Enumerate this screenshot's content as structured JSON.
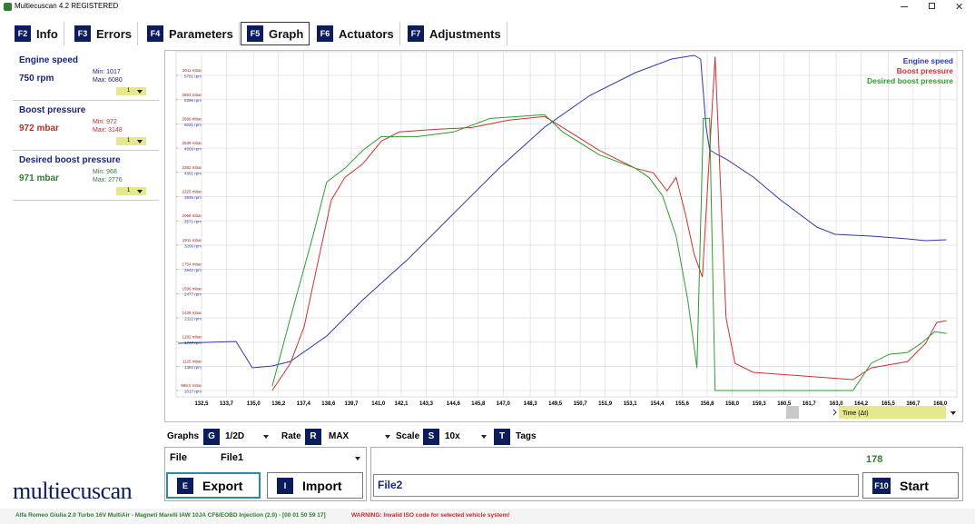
{
  "window": {
    "title": "Multiecuscan 4.2 REGISTERED"
  },
  "tabs": [
    {
      "key": "F2",
      "label": "Info"
    },
    {
      "key": "F3",
      "label": "Errors"
    },
    {
      "key": "F4",
      "label": "Parameters"
    },
    {
      "key": "F5",
      "label": "Graph"
    },
    {
      "key": "F6",
      "label": "Actuators"
    },
    {
      "key": "F7",
      "label": "Adjustments"
    }
  ],
  "panels": [
    {
      "name": "Engine speed",
      "value": "750 rpm",
      "min": "Min: 1017",
      "max": "Max: 6080",
      "scale": "1",
      "color": "#1a237e"
    },
    {
      "name": "Boost pressure",
      "value": "972 mbar",
      "min": "Min: 972",
      "max": "Max: 3148",
      "scale": "1",
      "color": "#c62828"
    },
    {
      "name": "Desired boost pressure",
      "value": "971 mbar",
      "min": "Min: 968",
      "max": "Max: 2776",
      "scale": "1",
      "color": "#2e7d32"
    }
  ],
  "chart_data": {
    "type": "line",
    "grid": true,
    "legend": "top-right",
    "x_label": "Time (Δt)",
    "xlim": [
      131.28,
      168.8
    ],
    "xticks": [
      {
        "value": 132.5,
        "label": "132,5"
      },
      {
        "value": 133.7,
        "label": "133,7"
      },
      {
        "value": 135.0,
        "label": "135,0"
      },
      {
        "value": 136.2,
        "label": "136,2"
      },
      {
        "value": 137.4,
        "label": "137,4"
      },
      {
        "value": 138.6,
        "label": "138,6"
      },
      {
        "value": 139.7,
        "label": "139,7"
      },
      {
        "value": 141.0,
        "label": "141,0"
      },
      {
        "value": 142.1,
        "label": "142,1"
      },
      {
        "value": 143.3,
        "label": "143,3"
      },
      {
        "value": 144.6,
        "label": "144,6"
      },
      {
        "value": 145.8,
        "label": "145,8"
      },
      {
        "value": 147.0,
        "label": "147,0"
      },
      {
        "value": 148.3,
        "label": "148,3"
      },
      {
        "value": 149.5,
        "label": "149,5"
      },
      {
        "value": 150.7,
        "label": "150,7"
      },
      {
        "value": 151.9,
        "label": "151,9"
      },
      {
        "value": 153.1,
        "label": "153,1"
      },
      {
        "value": 154.4,
        "label": "154,4"
      },
      {
        "value": 155.6,
        "label": "155,6"
      },
      {
        "value": 156.8,
        "label": "156,8"
      },
      {
        "value": 158.0,
        "label": "158,0"
      },
      {
        "value": 159.3,
        "label": "159,3"
      },
      {
        "value": 160.5,
        "label": "160,5"
      },
      {
        "value": 161.7,
        "label": "161,7"
      },
      {
        "value": 163.0,
        "label": "163,0"
      },
      {
        "value": 164.2,
        "label": "164,2"
      },
      {
        "value": 165.5,
        "label": "165,5"
      },
      {
        "value": 166.7,
        "label": "166,7"
      },
      {
        "value": 168.0,
        "label": "168,0"
      }
    ],
    "ylim": [
      927,
      3164
    ],
    "yticks": [
      {
        "value": 968,
        "label": "968,0 mbar"
      },
      {
        "value": 1125,
        "label": "1125 mbar"
      },
      {
        "value": 1282,
        "label": "1282 mbar"
      },
      {
        "value": 1439,
        "label": "1439 mbar"
      },
      {
        "value": 1596,
        "label": "1596 mbar"
      },
      {
        "value": 1754,
        "label": "1754 mbar"
      },
      {
        "value": 1911,
        "label": "1911 mbar"
      },
      {
        "value": 2068,
        "label": "2068 mbar"
      },
      {
        "value": 2225,
        "label": "2225 mbar"
      },
      {
        "value": 2382,
        "label": "2382 mbar"
      },
      {
        "value": 2539,
        "label": "2539 mbar"
      },
      {
        "value": 2696,
        "label": "2696 mbar"
      },
      {
        "value": 2853,
        "label": "2853 mbar"
      },
      {
        "value": 3011,
        "label": "3011 mbar"
      }
    ],
    "y2lim": [
      921,
      6116
    ],
    "y2ticks": [
      {
        "value": 1017,
        "label": "1017 rpm"
      },
      {
        "value": 1382,
        "label": "1382 rpm"
      },
      {
        "value": 1747,
        "label": "1747 rpm"
      },
      {
        "value": 2112,
        "label": "2112 rpm"
      },
      {
        "value": 2477,
        "label": "2477 rpm"
      },
      {
        "value": 2842,
        "label": "2842 rpm"
      },
      {
        "value": 3206,
        "label": "3206 rpm"
      },
      {
        "value": 3571,
        "label": "3571 rpm"
      },
      {
        "value": 3936,
        "label": "3936 rpm"
      },
      {
        "value": 4301,
        "label": "4301 rpm"
      },
      {
        "value": 4666,
        "label": "4666 rpm"
      },
      {
        "value": 5031,
        "label": "5031 rpm"
      },
      {
        "value": 5396,
        "label": "5396 rpm"
      },
      {
        "value": 5761,
        "label": "5761 rpm"
      }
    ],
    "series": [
      {
        "name": "Engine speed",
        "color": "#2d3aa8",
        "axis": "y2",
        "x": [
          131.37,
          134.16,
          134.94,
          135.9,
          136.77,
          138.52,
          140.26,
          142.44,
          144.62,
          146.81,
          148.99,
          151.17,
          153.35,
          155.09,
          156.18,
          156.49,
          156.75,
          156.92,
          157.27,
          157.71,
          159.02,
          160.32,
          162.07,
          162.94,
          164.68,
          166.43,
          167.3,
          168.3
        ],
        "values": [
          1728,
          1755,
          1359,
          1386,
          1454,
          1837,
          2384,
          2999,
          3683,
          4366,
          4981,
          5460,
          5802,
          6007,
          6061,
          6007,
          4981,
          4639,
          4571,
          4502,
          4229,
          3887,
          3477,
          3368,
          3341,
          3300,
          3273,
          3286
        ]
      },
      {
        "name": "Boost pressure",
        "color": "#d03030",
        "x": [
          135.9,
          136.77,
          137.43,
          138.08,
          138.74,
          139.39,
          140.26,
          141.14,
          142.01,
          143.75,
          145.5,
          147.24,
          148.99,
          149.86,
          151.6,
          153.35,
          154.22,
          154.87,
          155.31,
          155.75,
          156.18,
          156.57,
          157.18,
          157.71,
          158.14,
          159.02,
          162.07,
          163.81,
          164.68,
          166.43,
          167.3,
          167.83,
          168.3
        ],
        "values": [
          968,
          1144,
          1380,
          1791,
          2203,
          2350,
          2438,
          2585,
          2644,
          2661,
          2673,
          2720,
          2744,
          2673,
          2526,
          2409,
          2379,
          2262,
          2350,
          2115,
          1850,
          1703,
          3132,
          1438,
          1144,
          1086,
          1056,
          1039,
          1115,
          1156,
          1274,
          1409,
          1421
        ]
      },
      {
        "name": "Desired boost pressure",
        "color": "#2e9a2e",
        "x": [
          135.9,
          136.77,
          137.85,
          138.52,
          139.39,
          140.26,
          141.14,
          142.88,
          144.62,
          146.37,
          148.99,
          149.86,
          151.6,
          153.35,
          154.0,
          154.65,
          155.31,
          155.87,
          156.31,
          156.62,
          156.92,
          157.18,
          162.07,
          163.81,
          164.68,
          165.56,
          166.43,
          167.08,
          167.74,
          168.3
        ],
        "values": [
          997,
          1438,
          1968,
          2320,
          2409,
          2526,
          2614,
          2614,
          2644,
          2732,
          2756,
          2644,
          2497,
          2409,
          2350,
          2232,
          1968,
          1556,
          1115,
          2732,
          2732,
          968,
          968,
          968,
          1144,
          1203,
          1215,
          1274,
          1350,
          1338
        ]
      }
    ]
  },
  "controls": {
    "graphs": {
      "label": "Graphs",
      "key": "G",
      "value": "1/2D"
    },
    "rate": {
      "label": "Rate",
      "key": "R",
      "value": "MAX"
    },
    "scale": {
      "label": "Scale",
      "key": "S",
      "value": "10x"
    },
    "tags": {
      "key": "T",
      "label": "Tags"
    }
  },
  "file": {
    "label": "File",
    "value": "File1"
  },
  "buttons": {
    "export": {
      "key": "E",
      "label": "Export"
    },
    "import": {
      "key": "I",
      "label": "Import"
    },
    "start": {
      "key": "F10",
      "label": "Start"
    }
  },
  "file2": "File2",
  "counter": "178",
  "logo": "multiecuscan",
  "status": {
    "vehicle": "Alfa Romeo Giulia 2.0 Turbo 16V MultiAir - Magneti Marelli IAW 10JA CF6/EOBD Injection (2.0) - [00 01 50 59 17]",
    "warning": "WARNING: Invalid ISO code for selected vehicle system!"
  }
}
